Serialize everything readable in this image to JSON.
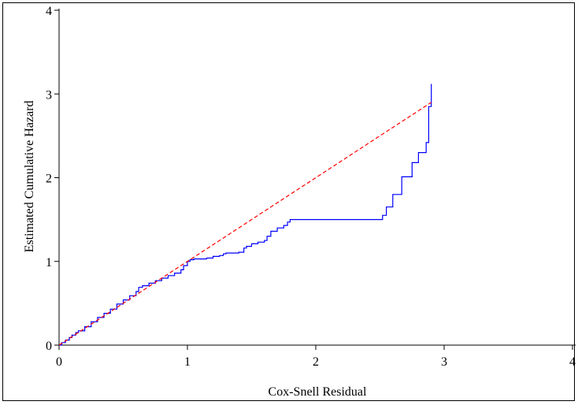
{
  "chart_data": {
    "type": "line",
    "title": "",
    "xlabel": "Cox-Snell Residual",
    "ylabel": "Estimated Cumulative Hazard",
    "xlim": [
      0,
      4
    ],
    "ylim": [
      0,
      4
    ],
    "xticks": [
      "0",
      "1",
      "2",
      "3",
      "4"
    ],
    "yticks": [
      "0",
      "1",
      "2",
      "3",
      "4"
    ],
    "grid": false,
    "legend": "none",
    "series": [
      {
        "style": "step-solid",
        "color": "#0000ff",
        "x": [
          0,
          0.02,
          0.05,
          0.08,
          0.1,
          0.13,
          0.15,
          0.2,
          0.25,
          0.3,
          0.35,
          0.4,
          0.45,
          0.5,
          0.55,
          0.6,
          0.62,
          0.65,
          0.7,
          0.75,
          0.8,
          0.85,
          0.9,
          0.95,
          0.97,
          1.0,
          1.02,
          1.05,
          1.1,
          1.15,
          1.2,
          1.25,
          1.28,
          1.3,
          1.35,
          1.4,
          1.44,
          1.46,
          1.5,
          1.55,
          1.6,
          1.62,
          1.65,
          1.7,
          1.75,
          1.78,
          1.8,
          1.85,
          1.9,
          2.0,
          2.1,
          2.2,
          2.3,
          2.4,
          2.5,
          2.52,
          2.55,
          2.6,
          2.67,
          2.75,
          2.8,
          2.86,
          2.88,
          2.9
        ],
        "y": [
          0,
          0.03,
          0.06,
          0.09,
          0.12,
          0.15,
          0.17,
          0.22,
          0.28,
          0.33,
          0.38,
          0.43,
          0.49,
          0.54,
          0.59,
          0.64,
          0.69,
          0.71,
          0.74,
          0.77,
          0.8,
          0.83,
          0.86,
          0.9,
          0.95,
          1.0,
          1.02,
          1.03,
          1.03,
          1.04,
          1.06,
          1.07,
          1.09,
          1.1,
          1.1,
          1.11,
          1.16,
          1.18,
          1.21,
          1.23,
          1.25,
          1.3,
          1.36,
          1.4,
          1.43,
          1.47,
          1.5,
          1.5,
          1.5,
          1.5,
          1.5,
          1.5,
          1.5,
          1.5,
          1.5,
          1.55,
          1.65,
          1.8,
          2.01,
          2.18,
          2.3,
          2.42,
          2.85,
          3.12
        ]
      },
      {
        "style": "dashed",
        "color": "#ff0000",
        "x": [
          0,
          2.9
        ],
        "y": [
          0,
          2.9
        ]
      }
    ]
  }
}
